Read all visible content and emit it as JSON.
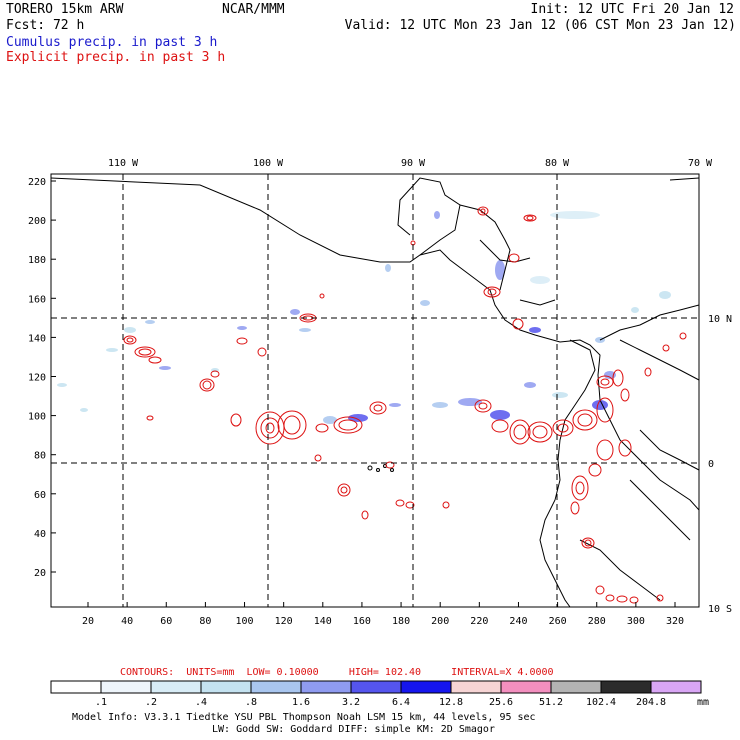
{
  "header": {
    "model": "TORERO  15km ARW",
    "org": "NCAR/MMM",
    "init": "Init: 12 UTC Fri 20 Jan 12",
    "fcst": "Fcst:   72 h",
    "valid": "Valid: 12 UTC Mon 23 Jan 12 (06 CST Mon 23 Jan 12)",
    "field1": "Cumulus precip. in past 3 h",
    "field2": "Explicit precip. in past 3 h"
  },
  "map": {
    "lon_labels": [
      "110 W",
      "100 W",
      "90 W",
      "80 W",
      "70 W"
    ],
    "lat_labels": [
      "10 N",
      "0",
      "10 S"
    ],
    "y_ticks": [
      "220",
      "200",
      "180",
      "160",
      "140",
      "120",
      "100",
      "80",
      "60",
      "40",
      "20"
    ],
    "x_ticks": [
      "20",
      "40",
      "60",
      "80",
      "100",
      "120",
      "140",
      "160",
      "180",
      "200",
      "220",
      "240",
      "260",
      "280",
      "300",
      "320"
    ]
  },
  "contours": {
    "label": "CONTOURS:",
    "units": "UNITS=mm",
    "low": "LOW= 0.10000",
    "high": "HIGH=  102.40",
    "interval": "INTERVAL=X  4.0000"
  },
  "colorbar": {
    "labels": [
      ".1",
      ".2",
      ".4",
      ".8",
      "1.6",
      "3.2",
      "6.4",
      "12.8",
      "25.6",
      "51.2",
      "102.4",
      "204.8"
    ],
    "unit": "mm",
    "colors": [
      "#ffffff",
      "#eef5fb",
      "#d8ecf6",
      "#c4e2f0",
      "#a9c6ef",
      "#8f9bf0",
      "#5555ee",
      "#1515ee",
      "#f6d4d4",
      "#f38fbf",
      "#b3b3b3",
      "#2b2b2b",
      "#d9a6f5"
    ]
  },
  "footer": {
    "line1": "Model Info: V3.3.1    Tiedtke YSU PBL  Thompson    Noah LSM  15 km,   44 levels,   95 sec",
    "line2": "LW: Godd SW: Goddard DIFF: simple KM: 2D Smagor"
  }
}
